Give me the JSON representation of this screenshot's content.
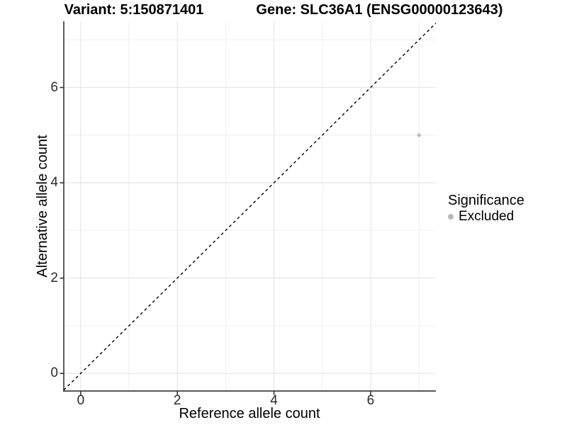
{
  "chart_data": {
    "type": "scatter",
    "title_left": "Variant: 5:150871401",
    "title_right": "Gene: SLC36A1 (ENSG00000123643)",
    "xlabel": "Reference allele count",
    "ylabel": "Alternative allele count",
    "xlim": [
      -0.35,
      7.35
    ],
    "ylim": [
      -0.37,
      7.39
    ],
    "x_ticks": [
      0,
      2,
      4,
      6
    ],
    "y_ticks": [
      0,
      2,
      4,
      6
    ],
    "x_minor_ticks": [
      1,
      3,
      5,
      7
    ],
    "y_minor_ticks": [
      1,
      3,
      5,
      7
    ],
    "grid": "major and minor gridlines on white background",
    "points": [
      {
        "x": 7,
        "y": 5,
        "series": "Excluded"
      }
    ],
    "series": [
      {
        "name": "Excluded",
        "color": "#b9b9b9",
        "point_radius": 2.5
      }
    ],
    "reference_line": {
      "kind": "identity y=x",
      "dash": "dashed",
      "color": "#000000"
    },
    "legend_position": "right"
  },
  "legend": {
    "title": "Significance",
    "items": [
      {
        "label": "Excluded",
        "color": "#b9b9b9"
      }
    ]
  },
  "colors": {
    "background": "#ffffff",
    "grid_major": "#e4e4e4",
    "grid_minor": "#efefef",
    "axis_line": "#3f3f3f",
    "tick_mark": "#333333",
    "tick_label": "#2b2b2b",
    "point": "#b9b9b9"
  }
}
